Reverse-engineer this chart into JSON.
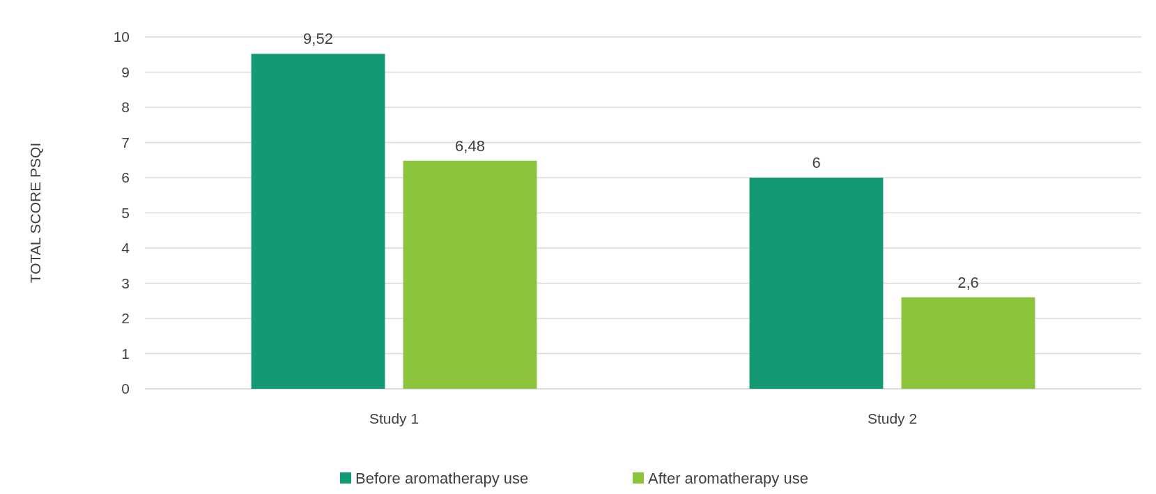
{
  "chart_data": {
    "type": "bar",
    "ylabel": "TOTAL SCORE PSQI",
    "categories": [
      "Study 1",
      "Study 2"
    ],
    "series": [
      {
        "name": "Before aromatherapy use",
        "color": "#139a74",
        "values": [
          9.52,
          6
        ],
        "value_labels": [
          "9,52",
          "6"
        ]
      },
      {
        "name": "After aromatherapy use",
        "color": "#8cc43c",
        "values": [
          6.48,
          2.6
        ],
        "value_labels": [
          "6,48",
          "2,6"
        ]
      }
    ],
    "ylim": [
      0,
      10
    ],
    "yticks": [
      0,
      1,
      2,
      3,
      4,
      5,
      6,
      7,
      8,
      9,
      10
    ],
    "grid": "y",
    "legend": "bottom"
  }
}
